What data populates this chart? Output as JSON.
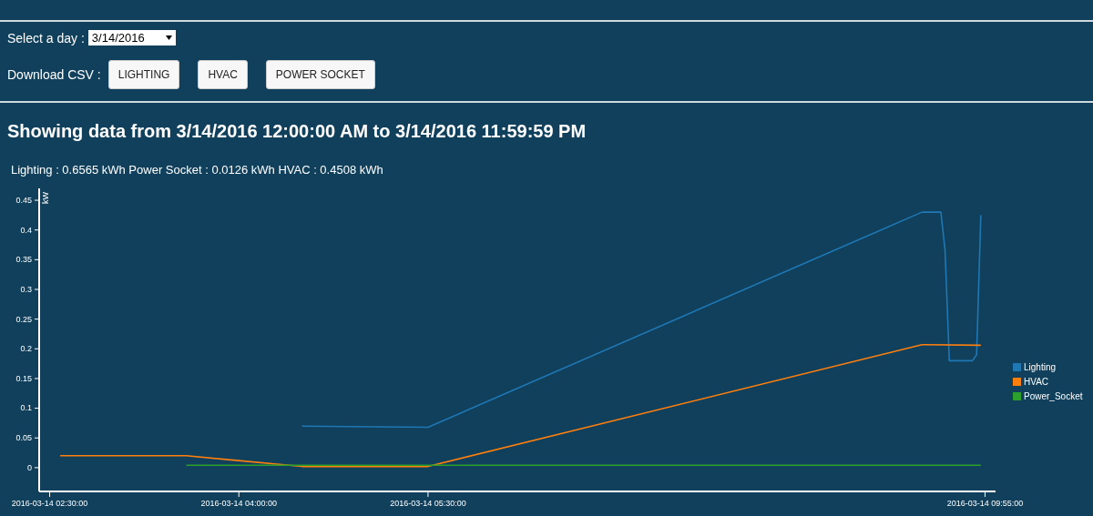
{
  "chart_data": {
    "type": "line",
    "title": "Showing data from 3/14/2016 12:00:00 AM to 3/14/2016 11:59:59 PM",
    "subtitle": "Lighting : 0.6565 kWh  Power Socket : 0.0126 kWh  HVAC : 0.4508 kWh",
    "ylabel": "kW",
    "annotations": [
      "Select a day :",
      "3/14/2016",
      "Download CSV :",
      "LIGHTING",
      "HVAC",
      "POWER SOCKET"
    ],
    "xlim": [
      "2016-03-14T02:25",
      "2016-03-14T10:00"
    ],
    "xticks": [
      {
        "value": "2016-03-14T02:30",
        "label": "2016-03-14 02:30:00"
      },
      {
        "value": "2016-03-14T04:00",
        "label": "2016-03-14 04:00:00"
      },
      {
        "value": "2016-03-14T05:30",
        "label": "2016-03-14 05:30:00"
      },
      {
        "value": "2016-03-14T09:55",
        "label": "2016-03-14 09:55:00"
      }
    ],
    "ylim": [
      -0.04,
      0.47
    ],
    "yticks": [
      0,
      0.05,
      0.1,
      0.15,
      0.2,
      0.25,
      0.3,
      0.35,
      0.4,
      0.45
    ],
    "grid": false,
    "legend": "right",
    "marker": "none",
    "line_style": "solid",
    "series": [
      {
        "name": "Lighting",
        "color": "#1f77b4",
        "x": [
          "2016-03-14T04:30",
          "2016-03-14T05:30",
          "2016-03-14T09:25",
          "2016-03-14T09:32",
          "2016-03-14T09:34",
          "2016-03-14T09:36",
          "2016-03-14T09:38",
          "2016-03-14T09:49",
          "2016-03-14T09:51",
          "2016-03-14T09:53"
        ],
        "values": [
          0.07,
          0.068,
          0.43,
          0.43,
          0.43,
          0.365,
          0.18,
          0.18,
          0.19,
          0.425
        ]
      },
      {
        "name": "HVAC",
        "color": "#ff7f0e",
        "x": [
          "2016-03-14T02:35",
          "2016-03-14T03:35",
          "2016-03-14T04:30",
          "2016-03-14T05:30",
          "2016-03-14T09:25",
          "2016-03-14T09:53"
        ],
        "values": [
          0.02,
          0.02,
          0.002,
          0.002,
          0.207,
          0.206
        ]
      },
      {
        "name": "Power_Socket",
        "color": "#2ca02c",
        "x": [
          "2016-03-14T03:35",
          "2016-03-14T09:53"
        ],
        "values": [
          0.004,
          0.004
        ]
      }
    ]
  }
}
